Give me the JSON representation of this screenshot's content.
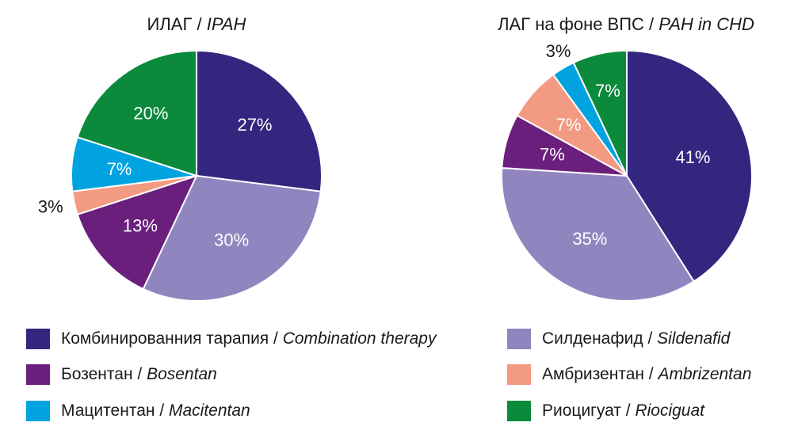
{
  "colors": {
    "combination": "#32267f",
    "sildenafil": "#9085bf",
    "bosentan": "#6b1f7d",
    "ambrisentan": "#f39a82",
    "macitentan": "#00a3e0",
    "riociguat": "#0a8a3a"
  },
  "legend": [
    {
      "key": "combination",
      "ru": "Комбинированния тарапия",
      "sep": " / ",
      "en": "Combination therapy"
    },
    {
      "key": "sildenafil",
      "ru": "Силденафид",
      "sep": " / ",
      "en": "Sildenafid"
    },
    {
      "key": "bosentan",
      "ru": "Бозентан",
      "sep": " / ",
      "en": "Bosentan"
    },
    {
      "key": "ambrisentan",
      "ru": "Амбризентан",
      "sep": " / ",
      "en": "Ambrizentan"
    },
    {
      "key": "macitentan",
      "ru": "Мацитентан",
      "sep": " / ",
      "en": "Macitentan"
    },
    {
      "key": "riociguat",
      "ru": "Риоцигуат",
      "sep": " / ",
      "en": "Riociguat"
    }
  ],
  "chart_data": [
    {
      "type": "pie",
      "title": "ИЛАГ / IPAH",
      "title_ru": "ИЛАГ",
      "title_en": "IPAH",
      "slices": [
        {
          "key": "combination",
          "value": 27,
          "label": "27%"
        },
        {
          "key": "sildenafil",
          "value": 30,
          "label": "30%"
        },
        {
          "key": "bosentan",
          "value": 13,
          "label": "13%"
        },
        {
          "key": "ambrisentan",
          "value": 3,
          "label": "3%"
        },
        {
          "key": "macitentan",
          "value": 7,
          "label": "7%"
        },
        {
          "key": "riociguat",
          "value": 20,
          "label": "20%"
        }
      ]
    },
    {
      "type": "pie",
      "title": "ЛАГ на фоне ВПС / PAH in CHD",
      "title_ru": "ЛАГ на фоне ВПС",
      "title_en": "PAH in CHD",
      "slices": [
        {
          "key": "combination",
          "value": 41,
          "label": "41%"
        },
        {
          "key": "sildenafil",
          "value": 35,
          "label": "35%"
        },
        {
          "key": "bosentan",
          "value": 7,
          "label": "7%"
        },
        {
          "key": "ambrisentan",
          "value": 7,
          "label": "7%"
        },
        {
          "key": "macitentan",
          "value": 3,
          "label": "3%"
        },
        {
          "key": "riociguat",
          "value": 7,
          "label": "7%"
        }
      ]
    }
  ]
}
